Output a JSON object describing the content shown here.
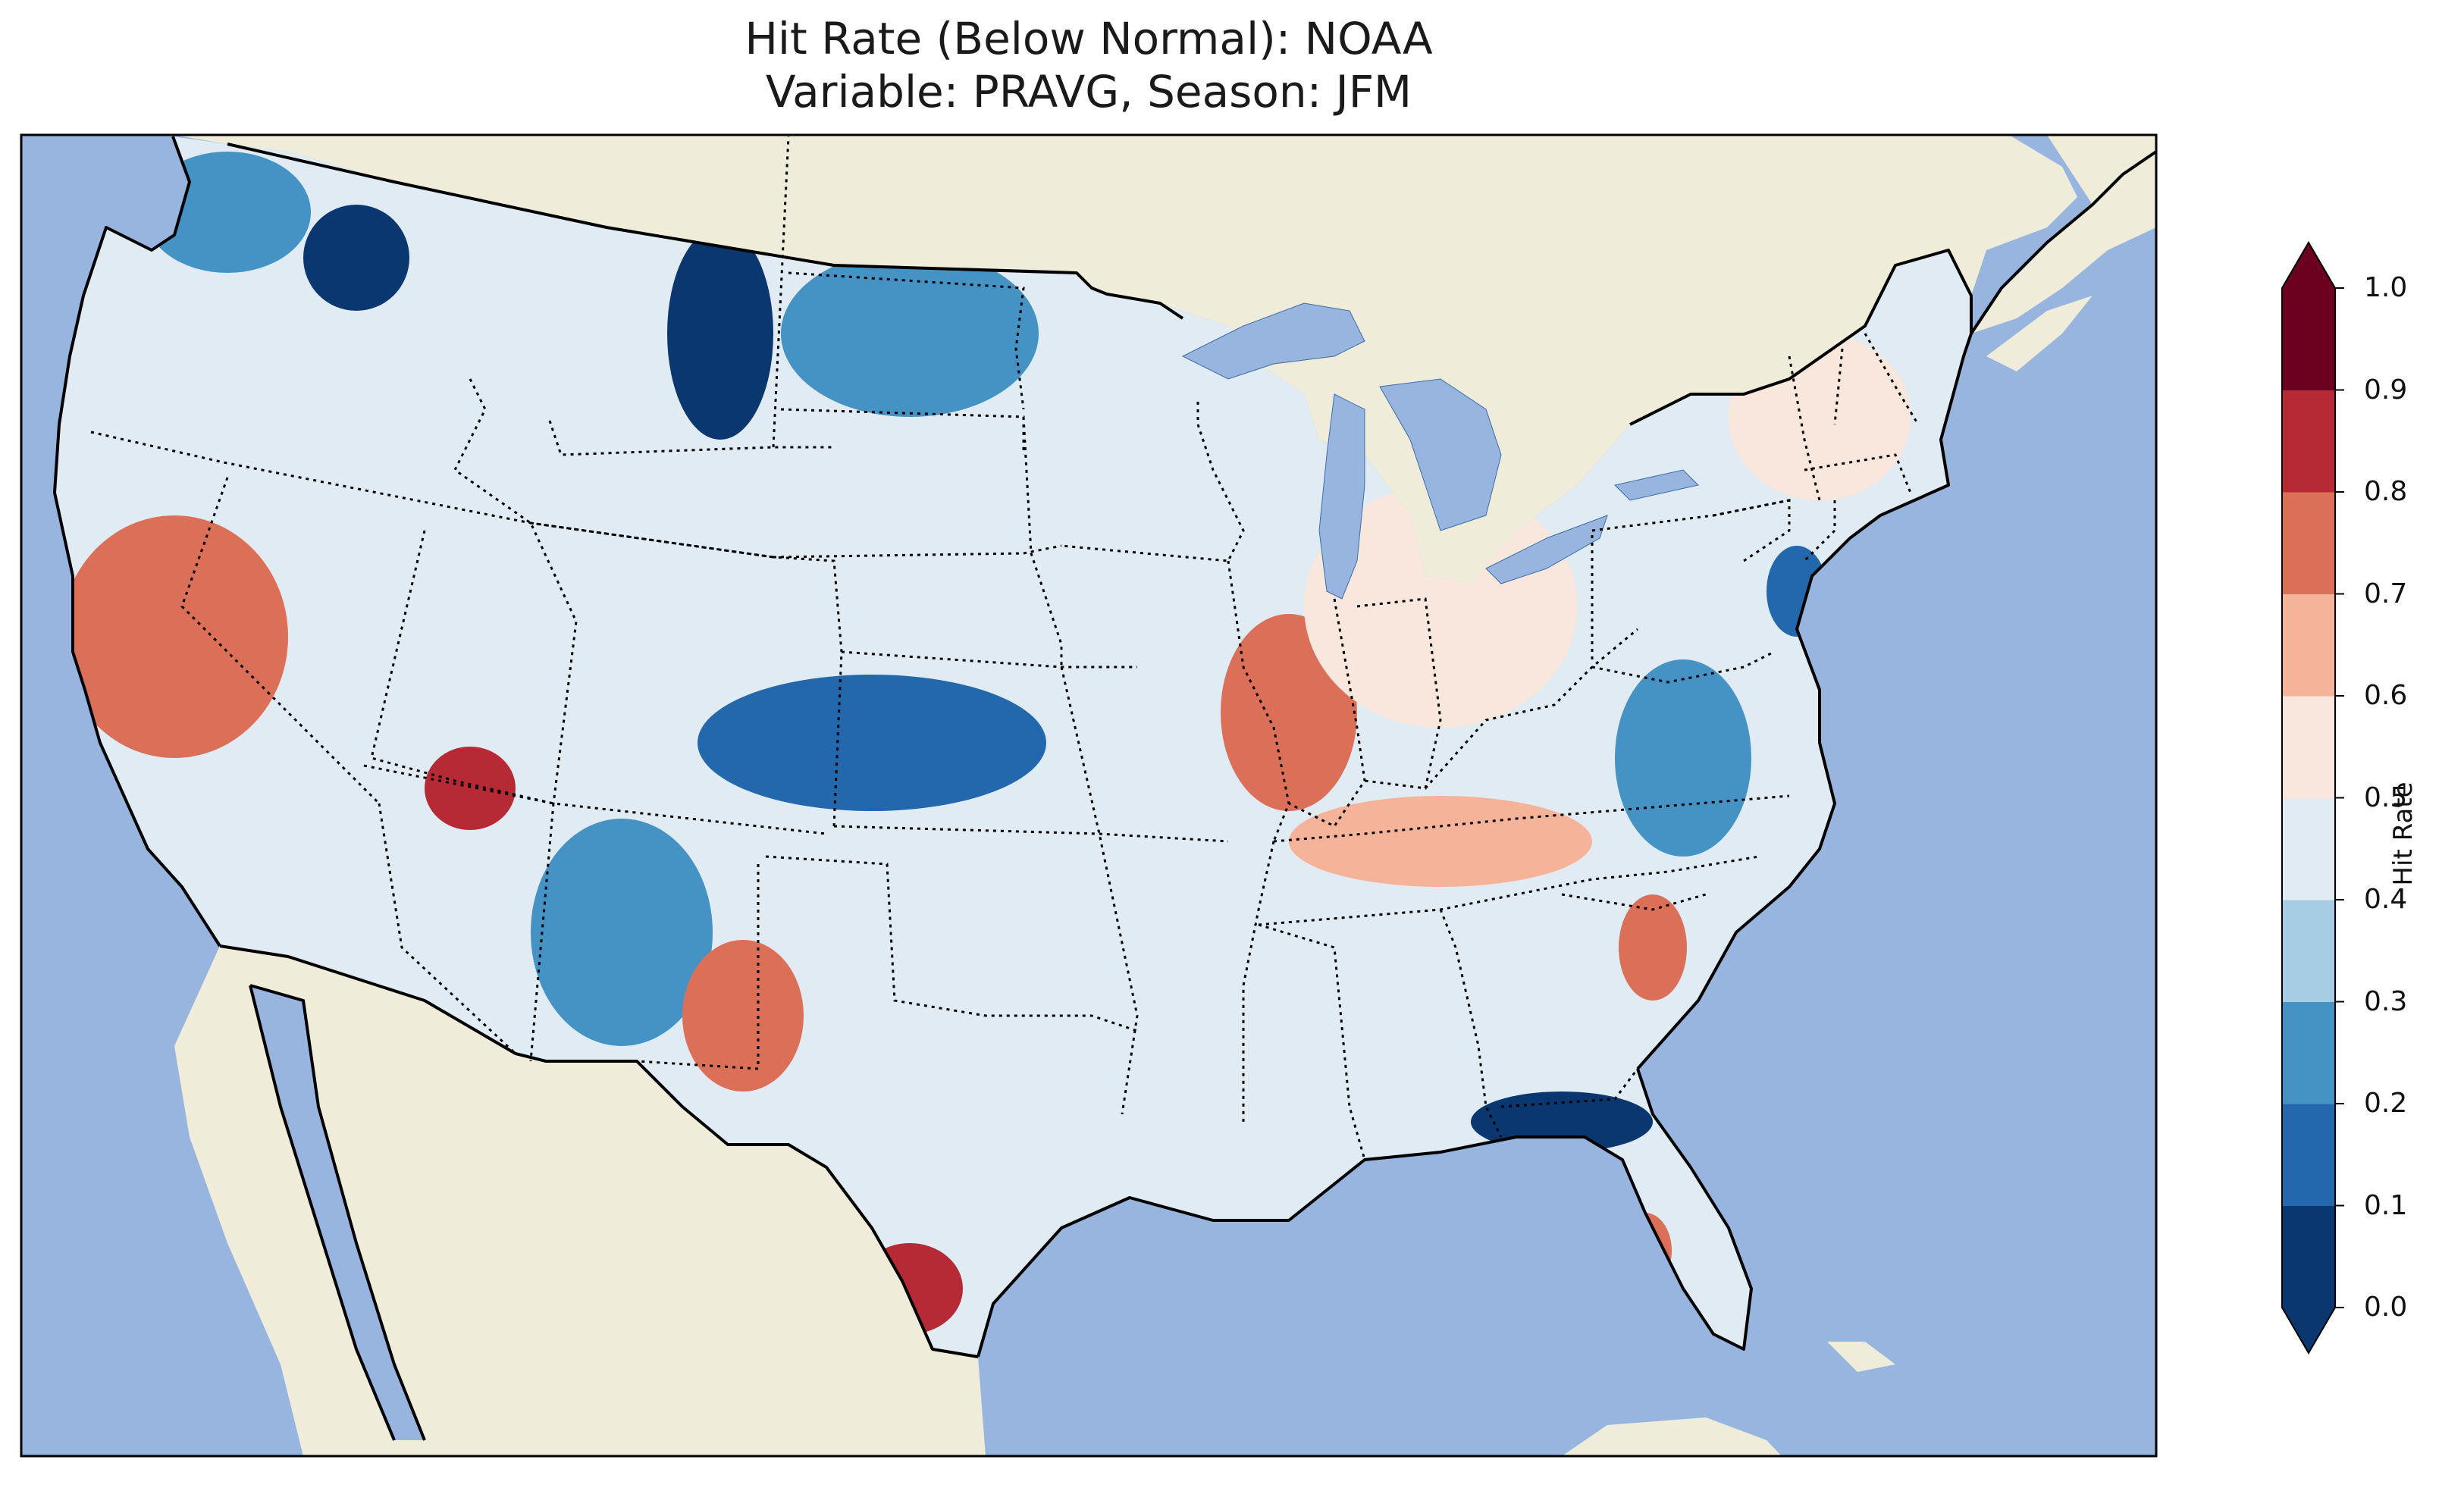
{
  "title": {
    "line1": "Hit Rate (Below Normal): NOAA",
    "line2": "Variable: PRAVG, Season: JFM"
  },
  "map": {
    "ocean_color": "#97b5df",
    "land_color": "#efedd9",
    "coastline_color": "#000000",
    "state_borders": "dotted",
    "domain": "Contiguous United States"
  },
  "colorbar": {
    "label": "Hit Rate",
    "extend": "both",
    "ticks": [
      "0.0",
      "0.1",
      "0.2",
      "0.3",
      "0.4",
      "0.5",
      "0.6",
      "0.7",
      "0.8",
      "0.9",
      "1.0"
    ],
    "boundaries": [
      0.0,
      0.1,
      0.2,
      0.3,
      0.4,
      0.5,
      0.6,
      0.7,
      0.8,
      0.9,
      1.0
    ],
    "colors": [
      "#0a3770",
      "#2368ad",
      "#4593c5",
      "#a6cde3",
      "#e1ebf3",
      "#f9e6dc",
      "#f5b499",
      "#dc6f58",
      "#b52a35",
      "#6c001f"
    ],
    "under_color": "#0a3770",
    "over_color": "#6c001f",
    "colormap": "RdBu_r"
  },
  "chart_data": {
    "type": "heatmap",
    "title": "Hit Rate (Below Normal): NOAA\nVariable: PRAVG, Season: JFM",
    "value_label": "Hit Rate",
    "range": [
      0.0,
      1.0
    ],
    "regions": [
      {
        "name": "Pacific Northwest coast",
        "value": 0.25
      },
      {
        "name": "Northern Idaho / NW Montana",
        "value": 0.08
      },
      {
        "name": "Southern Montana / Wyoming",
        "value": 0.08
      },
      {
        "name": "North Dakota",
        "value": 0.25
      },
      {
        "name": "Northern California",
        "value": 0.75
      },
      {
        "name": "Nevada / Utah",
        "value": 0.45
      },
      {
        "name": "Southern Utah",
        "value": 0.85
      },
      {
        "name": "Colorado / Kansas",
        "value": 0.18
      },
      {
        "name": "New Mexico",
        "value": 0.25
      },
      {
        "name": "West Texas",
        "value": 0.75
      },
      {
        "name": "South Texas",
        "value": 0.85
      },
      {
        "name": "Illinois",
        "value": 0.75
      },
      {
        "name": "Tennessee / Kentucky",
        "value": 0.65
      },
      {
        "name": "New Jersey",
        "value": 0.15
      },
      {
        "name": "Gulf Coast Panhandle",
        "value": 0.08
      },
      {
        "name": "South Carolina coast",
        "value": 0.75
      },
      {
        "name": "South Florida",
        "value": 0.75
      },
      {
        "name": "Great Lakes / Ohio Valley",
        "value": 0.55
      },
      {
        "name": "Virginia / North Carolina",
        "value": 0.25
      },
      {
        "name": "New England",
        "value": 0.5
      }
    ]
  }
}
